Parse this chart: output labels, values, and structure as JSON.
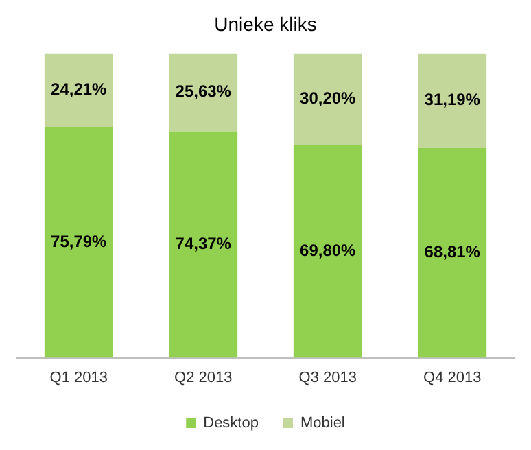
{
  "chart_data": {
    "type": "bar",
    "title": "Unieke kliks",
    "stacked": true,
    "legend": "bottom",
    "grid": false,
    "categories": [
      "Q1 2013",
      "Q2 2013",
      "Q3 2013",
      "Q4 2013"
    ],
    "series": [
      {
        "name": "Desktop",
        "color": "#92d050",
        "values": [
          75.79,
          74.37,
          69.8,
          68.81
        ],
        "value_labels": [
          "75,79%",
          "74,37%",
          "69,80%",
          "68,81%"
        ]
      },
      {
        "name": "Mobiel",
        "color": "#c4d79b",
        "values": [
          24.21,
          25.63,
          30.2,
          31.19
        ],
        "value_labels": [
          "24,21%",
          "25,63%",
          "30,20%",
          "31,19%"
        ]
      }
    ]
  }
}
